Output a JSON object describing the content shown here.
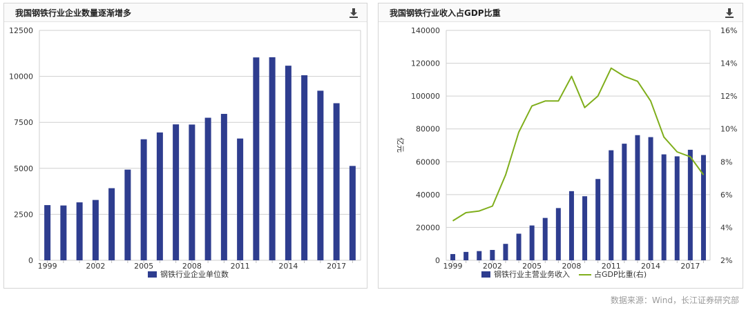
{
  "panels": [
    {
      "title": "我国钢铁行业企业数量逐渐增多",
      "download_icon": "download-icon"
    },
    {
      "title": "我国钢铁行业收入占GDP比重",
      "download_icon": "download-icon"
    }
  ],
  "source": "数据来源：Wind，长江证券研究部",
  "chart_data": [
    {
      "type": "bar",
      "categories": [
        "1999",
        "2000",
        "2001",
        "2002",
        "2003",
        "2004",
        "2005",
        "2006",
        "2007",
        "2008",
        "2009",
        "2010",
        "2011",
        "2012",
        "2013",
        "2014",
        "2015",
        "2016",
        "2017",
        "2018"
      ],
      "x_tick_labels": [
        "1999",
        "2002",
        "2005",
        "2008",
        "2011",
        "2014",
        "2017"
      ],
      "series": [
        {
          "name": "钢铁行业企业单位数",
          "color": "#2e3d8f",
          "values": [
            3000,
            2980,
            3150,
            3280,
            3920,
            4930,
            6580,
            6950,
            7390,
            7380,
            7750,
            7960,
            6620,
            11030,
            11040,
            10580,
            10060,
            9220,
            8540,
            5130
          ]
        }
      ],
      "y_ticks": [
        "0",
        "2500",
        "5000",
        "7500",
        "10000",
        "12500"
      ],
      "ylim": [
        0,
        12500
      ],
      "legend": "bottom",
      "grid": true
    },
    {
      "type": "bar+line",
      "categories": [
        "1999",
        "2000",
        "2001",
        "2002",
        "2003",
        "2004",
        "2005",
        "2006",
        "2007",
        "2008",
        "2009",
        "2010",
        "2011",
        "2012",
        "2013",
        "2014",
        "2015",
        "2016",
        "2017",
        "2018"
      ],
      "x_tick_labels": [
        "1999",
        "2002",
        "2005",
        "2008",
        "2011",
        "2014",
        "2017"
      ],
      "ylabel_left": "亿元",
      "series": [
        {
          "name": "钢铁行业主营业务收入",
          "type": "bar",
          "axis": "left",
          "color": "#2e3d8f",
          "values": [
            3800,
            5100,
            5600,
            6300,
            10000,
            16200,
            21200,
            25800,
            31800,
            42100,
            39000,
            49500,
            67000,
            71000,
            76200,
            75000,
            64500,
            63300,
            67300,
            64100
          ]
        },
        {
          "name": "占GDP比重(右)",
          "type": "line",
          "axis": "right",
          "color": "#7fae1b",
          "values": [
            4.4,
            4.9,
            5.0,
            5.3,
            7.2,
            9.8,
            11.4,
            11.7,
            11.7,
            13.2,
            11.3,
            12.0,
            13.7,
            13.2,
            12.9,
            11.7,
            9.5,
            8.6,
            8.3,
            7.2
          ]
        }
      ],
      "y_ticks_left": [
        "0",
        "20000",
        "40000",
        "60000",
        "80000",
        "100000",
        "120000",
        "140000"
      ],
      "ylim_left": [
        0,
        140000
      ],
      "y_ticks_right": [
        "2%",
        "4%",
        "6%",
        "8%",
        "10%",
        "12%",
        "14%",
        "16%"
      ],
      "ylim_right": [
        2,
        16
      ],
      "legend": "bottom",
      "grid": true
    }
  ]
}
